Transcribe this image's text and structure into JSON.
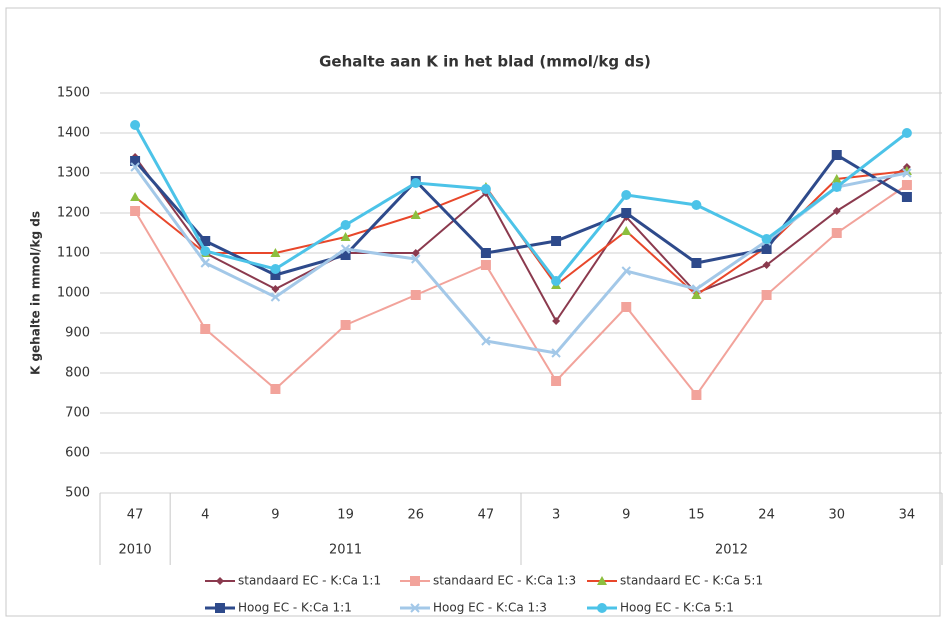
{
  "chart_data": {
    "type": "line",
    "title": "Gehalte aan K in het blad (mmol/kg ds)",
    "y_label": "K gehalte in mmol/kg ds",
    "categories": [
      "47",
      "4",
      "9",
      "19",
      "26",
      "47",
      "3",
      "9",
      "15",
      "24",
      "30",
      "34"
    ],
    "category_groups": [
      {
        "label": "2010",
        "span": 1
      },
      {
        "label": "2011",
        "span": 5
      },
      {
        "label": "2012",
        "span": 6
      }
    ],
    "ylim": [
      500,
      1500
    ],
    "yticks": [
      500,
      600,
      700,
      800,
      900,
      1000,
      1100,
      1200,
      1300,
      1400,
      1500
    ],
    "grid": true,
    "legend": "bottom",
    "series": [
      {
        "name": "standaard EC - K:Ca 1:1",
        "color": "#8b3a4e",
        "marker": "diamond",
        "marker_color": "#8b3a4e",
        "values": [
          1340,
          1100,
          1010,
          1100,
          1100,
          1250,
          930,
          1190,
          1000,
          1070,
          1205,
          1315
        ]
      },
      {
        "name": "standaard EC - K:Ca 1:3",
        "color": "#f2a39b",
        "marker": "square",
        "marker_color": "#f2a39b",
        "values": [
          1205,
          910,
          760,
          920,
          995,
          1070,
          780,
          965,
          745,
          995,
          1150,
          1270
        ]
      },
      {
        "name": "standaard EC - K:Ca 5:1",
        "color": "#e8472b",
        "marker": "triangle",
        "marker_color": "#8dbf3f",
        "values": [
          1240,
          1100,
          1100,
          1140,
          1195,
          1265,
          1020,
          1155,
          995,
          1115,
          1285,
          1305
        ]
      },
      {
        "name": "Hoog EC - K:Ca 1:1",
        "color": "#2e4a8b",
        "marker": "square",
        "marker_color": "#2e4a8b",
        "values": [
          1330,
          1130,
          1045,
          1095,
          1280,
          1100,
          1130,
          1200,
          1075,
          1110,
          1345,
          1240
        ]
      },
      {
        "name": "Hoog EC - K:Ca 1:3",
        "color": "#a3c8e8",
        "marker": "x",
        "marker_color": "#a3c8e8",
        "values": [
          1315,
          1075,
          990,
          1110,
          1085,
          880,
          850,
          1055,
          1010,
          1130,
          1265,
          1300
        ]
      },
      {
        "name": "Hoog EC - K:Ca 5:1",
        "color": "#4cc3e8",
        "marker": "circle",
        "marker_color": "#4cc3e8",
        "values": [
          1420,
          1105,
          1060,
          1170,
          1275,
          1260,
          1030,
          1245,
          1220,
          1135,
          1265,
          1400
        ]
      }
    ]
  }
}
